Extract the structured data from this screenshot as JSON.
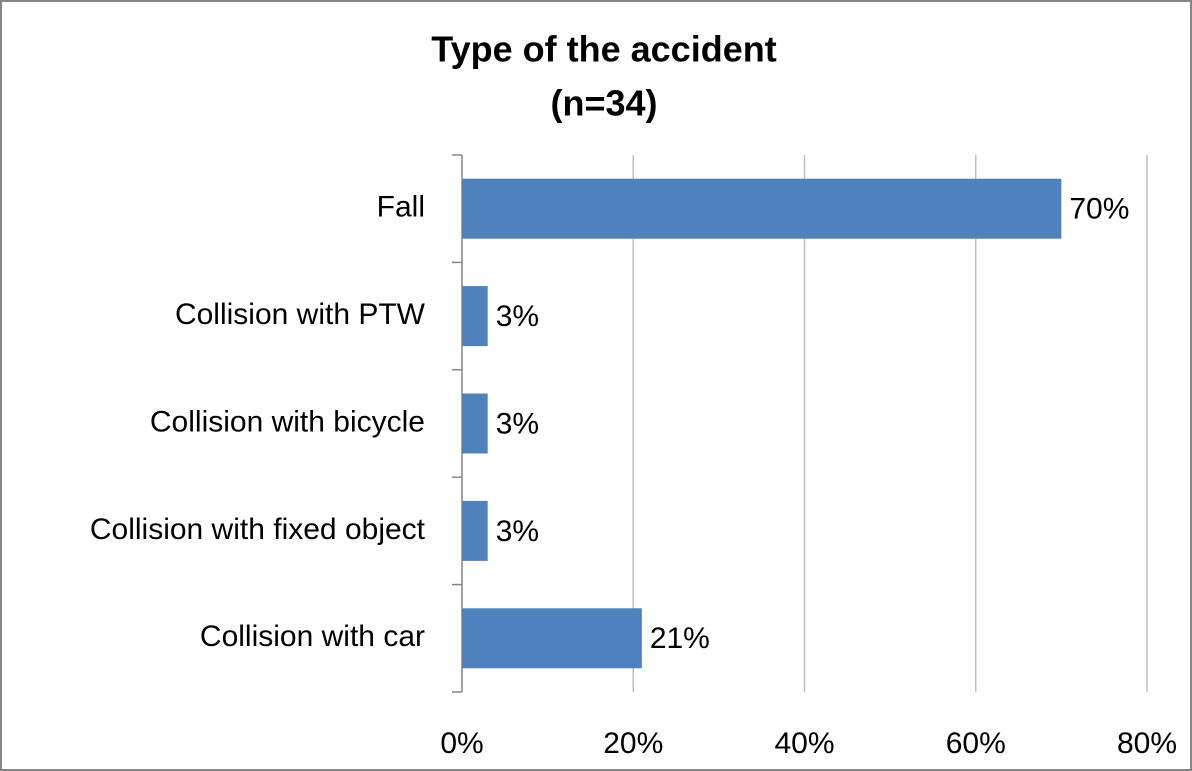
{
  "chart_data": {
    "type": "bar",
    "orientation": "horizontal",
    "title": "Type of the accident",
    "subtitle": "(n=34)",
    "categories": [
      "Fall",
      "Collision with PTW",
      "Collision with bicycle",
      "Collision with fixed object",
      "Collision with car"
    ],
    "values": [
      70,
      3,
      3,
      3,
      21
    ],
    "value_labels": [
      "70%",
      "3%",
      "3%",
      "3%",
      "21%"
    ],
    "color": "#4f81bd",
    "xlim": [
      0,
      80
    ],
    "xticks": [
      {
        "value": 0,
        "label": "0%"
      },
      {
        "value": 20,
        "label": "20%"
      },
      {
        "value": 40,
        "label": "40%"
      },
      {
        "value": 60,
        "label": "60%"
      },
      {
        "value": 80,
        "label": "80%"
      }
    ],
    "grid": true
  }
}
